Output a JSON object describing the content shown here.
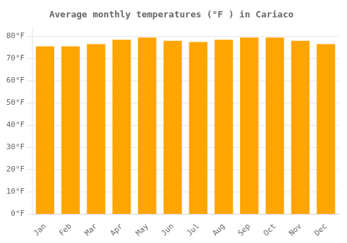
{
  "chart_data": {
    "type": "bar",
    "title": "Average monthly temperatures (°F ) in Cariaco",
    "categories": [
      "Jan",
      "Feb",
      "Mar",
      "Apr",
      "May",
      "Jun",
      "Jul",
      "Aug",
      "Sep",
      "Oct",
      "Nov",
      "Dec"
    ],
    "values": [
      75.5,
      75.5,
      76.5,
      78.5,
      79.5,
      78.0,
      77.5,
      78.5,
      79.5,
      79.5,
      78.0,
      76.5
    ],
    "color": "#FFA500",
    "ylim": [
      0,
      84
    ],
    "yticks": [
      {
        "value": 0,
        "label": "0°F"
      },
      {
        "value": 10,
        "label": "10°F"
      },
      {
        "value": 20,
        "label": "20°F"
      },
      {
        "value": 30,
        "label": "30°F"
      },
      {
        "value": 40,
        "label": "40°F"
      },
      {
        "value": 50,
        "label": "50°F"
      },
      {
        "value": 60,
        "label": "60°F"
      },
      {
        "value": 70,
        "label": "70°F"
      },
      {
        "value": 80,
        "label": "80°F"
      }
    ],
    "grid": true
  }
}
